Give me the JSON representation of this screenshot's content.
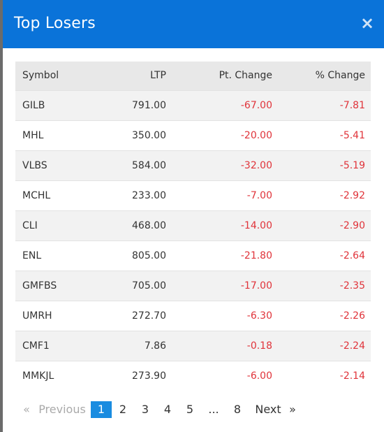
{
  "modal": {
    "title": "Top Losers",
    "close_glyph": "×"
  },
  "table": {
    "headers": {
      "symbol": "Symbol",
      "ltp": "LTP",
      "pt_change": "Pt. Change",
      "pct_change": "% Change"
    },
    "rows": [
      {
        "symbol": "GILB",
        "ltp": "791.00",
        "pt_change": "-67.00",
        "pct_change": "-7.81"
      },
      {
        "symbol": "MHL",
        "ltp": "350.00",
        "pt_change": "-20.00",
        "pct_change": "-5.41"
      },
      {
        "symbol": "VLBS",
        "ltp": "584.00",
        "pt_change": "-32.00",
        "pct_change": "-5.19"
      },
      {
        "symbol": "MCHL",
        "ltp": "233.00",
        "pt_change": "-7.00",
        "pct_change": "-2.92"
      },
      {
        "symbol": "CLI",
        "ltp": "468.00",
        "pt_change": "-14.00",
        "pct_change": "-2.90"
      },
      {
        "symbol": "ENL",
        "ltp": "805.00",
        "pt_change": "-21.80",
        "pct_change": "-2.64"
      },
      {
        "symbol": "GMFBS",
        "ltp": "705.00",
        "pt_change": "-17.00",
        "pct_change": "-2.35"
      },
      {
        "symbol": "UMRH",
        "ltp": "272.70",
        "pt_change": "-6.30",
        "pct_change": "-2.26"
      },
      {
        "symbol": "CMF1",
        "ltp": "7.86",
        "pt_change": "-0.18",
        "pct_change": "-2.24"
      },
      {
        "symbol": "MMKJL",
        "ltp": "273.90",
        "pt_change": "-6.00",
        "pct_change": "-2.14"
      }
    ]
  },
  "pagination": {
    "first": "«",
    "previous": "Previous",
    "pages": [
      "1",
      "2",
      "3",
      "4",
      "5",
      "...",
      "8"
    ],
    "current": "1",
    "next": "Next",
    "last": "»"
  },
  "colors": {
    "header_bg": "#0a73d9",
    "negative": "#e0333a",
    "active_page": "#1a8ce0"
  }
}
